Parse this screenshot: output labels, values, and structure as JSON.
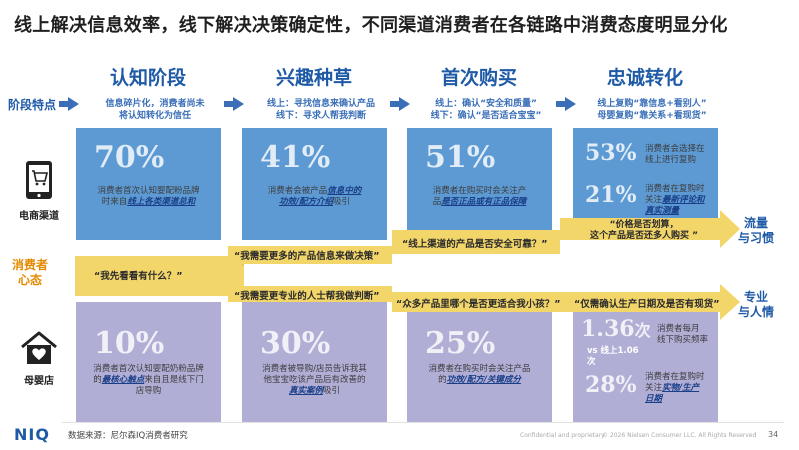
{
  "title": "线上解决信息效率，线下解决决策确定性，不同渠道消费者在各链路中消费态度明显分化",
  "row_label": "阶段特点",
  "stages": [
    {
      "name": "认知阶段",
      "feature_1": "信息碎片化，消费者尚未",
      "feature_2": "将认知转化为信任"
    },
    {
      "name": "兴趣种草",
      "feature_1": "线上：寻找信息来确认产品",
      "feature_2": "线下：寻求人帮我判断"
    },
    {
      "name": "首次购买",
      "feature_1": "线上：确认“安全和质量”",
      "feature_2": "线下：确认“是否适合宝宝”"
    },
    {
      "name": "忠诚转化",
      "feature_1": "线上复购“靠信息+看别人”",
      "feature_2": "母婴复购“靠关系+看现货”"
    }
  ],
  "ecommerce": {
    "label": "电商渠道",
    "cells": [
      {
        "pct": "70%",
        "t1": "消费者首次认知婴配粉品牌",
        "t2": "时来自",
        "hl": "线上各类渠道总和"
      },
      {
        "pct": "41%",
        "t1": "消费者会被产品",
        "hl1": "信息中的",
        "hl2": "功效/配方介绍",
        "t2": "吸引"
      },
      {
        "pct": "51%",
        "t1": "消费者在购买时会关注产",
        "t2": "品",
        "hl": "是否正品或有正品保障"
      },
      {
        "pct_a": "53%",
        "a1": "消费者会选择在",
        "a2": "线上进行复购",
        "pct_b": "21%",
        "b1": "消费者在复购时",
        "b2": "关注",
        "hl1": "最新评论和",
        "hl2": "真实测量"
      }
    ]
  },
  "consumer_mind": {
    "l1": "消费者",
    "l2": "心态"
  },
  "quotes": {
    "q_center": "“我先看看有什么？”",
    "q_top1": "“我需要更多的产品信息来做决策”",
    "q_top2": "“线上渠道的产品是否安全可靠？”",
    "q_top3a": "“价格是否划算，",
    "q_top3b": "这个产品是否还多人购买 ”",
    "q_bot1": "“我需要更专业的人士帮我做判断”",
    "q_bot2": "“众多产品里哪个是否更适合我小孩？”",
    "q_bot3": "“仅需确认生产日期及是否有现货”"
  },
  "side_notes": {
    "top_1": "流量",
    "top_2": "与习惯",
    "bot_1": "专业",
    "bot_2": "与人情"
  },
  "maternal": {
    "label": "母婴店",
    "cells": [
      {
        "pct": "10%",
        "t1": "消费者首次认知婴配奶粉品牌",
        "t2": "的",
        "hl": "最核心触点",
        "t3": "来自且是线下门",
        "t4": "店导购"
      },
      {
        "pct": "30%",
        "t1": "消费者被导购/店员告诉我其",
        "t2": "他宝宝吃该产品后有改善的",
        "hl": "真实案例",
        "t3": "吸引"
      },
      {
        "pct": "25%",
        "t1": "消费者在购买时会关注产品",
        "t2": "的",
        "hl": "功效/配方/关键成分"
      },
      {
        "pct_a": "1.36",
        "unit_a": "次",
        "vs": "vs 线上1.06次",
        "a1": "消费者每月",
        "a2": "线下购买频率",
        "pct_b": "28%",
        "b1": "消费者在复购时",
        "b2": "关注",
        "hl1": "实物/生产",
        "hl2": "日期"
      }
    ]
  },
  "footer": {
    "logo": "NIQ",
    "source": "数据来源：尼尔森IQ消费者研究",
    "confidential": "Confidential and proprietary",
    "copyright": "© 2026 Nielsen Consumer LLC. All Rights Reserved",
    "page": "34"
  },
  "colors": {
    "blue_box": "#5d9ad3",
    "purple_box": "#b1aed6",
    "band": "#f0c84a",
    "title_blue": "#1f5aa6",
    "mind_orange": "#e58a00"
  }
}
